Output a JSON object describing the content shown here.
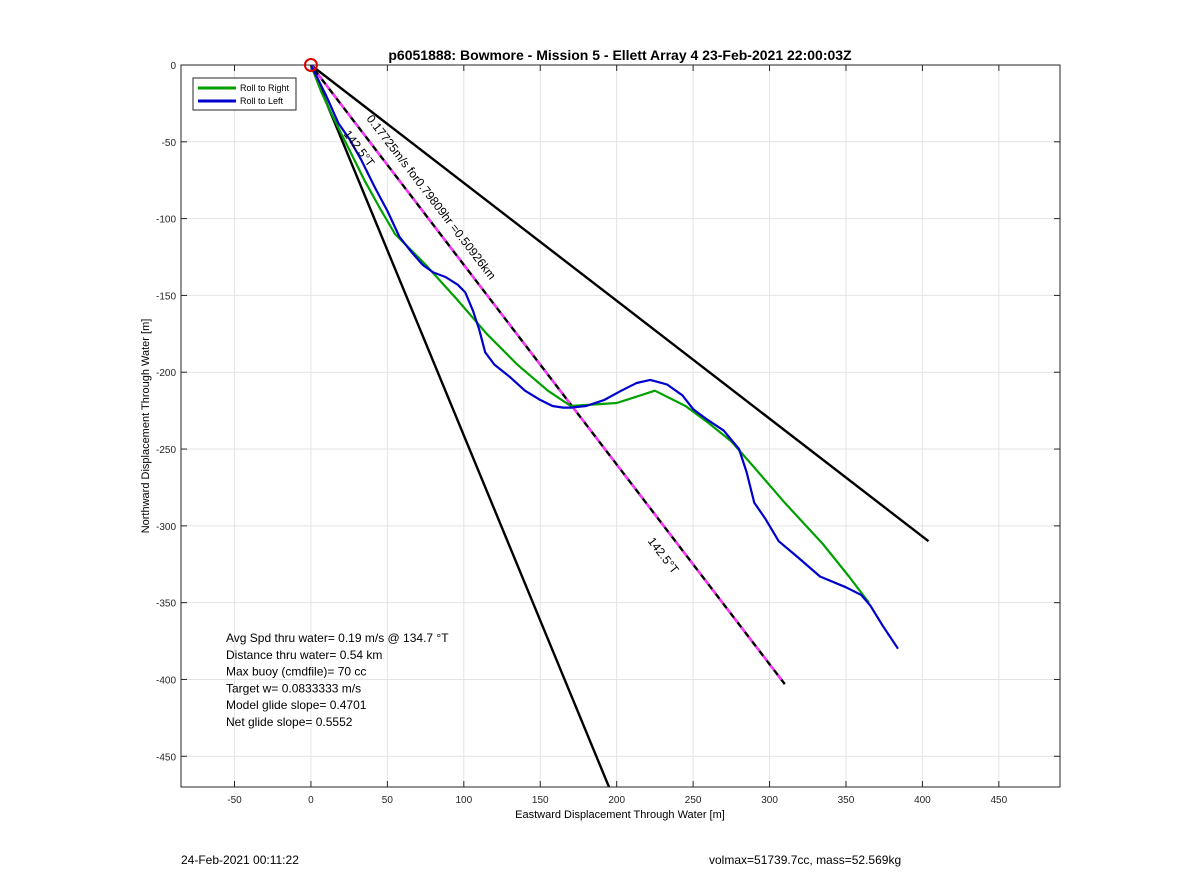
{
  "footer": {
    "timestamp": "24-Feb-2021 00:11:22",
    "volmax_mass": "volmax=51739.7cc, mass=52.569kg"
  },
  "chart_data": {
    "type": "line",
    "title": "p6051888: Bowmore - Mission 5 - Ellett Array 4 23-Feb-2021 22:00:03Z",
    "xlabel": "Eastward Displacement Through Water [m]",
    "ylabel": "Northward Displacement Through Water [m]",
    "xlim": [
      -85,
      490
    ],
    "ylim": [
      -470,
      0
    ],
    "xticks": [
      -50,
      0,
      50,
      100,
      150,
      200,
      250,
      300,
      350,
      400,
      450
    ],
    "yticks": [
      0,
      -50,
      -100,
      -150,
      -200,
      -250,
      -300,
      -350,
      -400,
      -450
    ],
    "grid": true,
    "legend_position": "top-left",
    "colors": {
      "roll_right": "#00a000",
      "roll_left": "#0000cc",
      "bounds": "#000000",
      "model_dash": "#ff33ff",
      "start_marker": "#dd0000",
      "grid": "#e4e4e4"
    },
    "series": [
      {
        "name": "Roll to Right",
        "color": "#00a000",
        "x": [
          0,
          7,
          15,
          25,
          35,
          45,
          55,
          65,
          75,
          95,
          115,
          135,
          155,
          170,
          200,
          225,
          245,
          260,
          275,
          290,
          310,
          335,
          352,
          365
        ],
        "y": [
          0,
          -18,
          -35,
          -55,
          -75,
          -93,
          -110,
          -120,
          -130,
          -152,
          -175,
          -195,
          -212,
          -222,
          -220,
          -212,
          -222,
          -233,
          -245,
          -262,
          -285,
          -312,
          -333,
          -350
        ]
      },
      {
        "name": "Roll to Left",
        "color": "#0000cc",
        "x": [
          0,
          5,
          10,
          18,
          25,
          33,
          42,
          50,
          58,
          66,
          73,
          80,
          88,
          96,
          101,
          106,
          110,
          114,
          120,
          130,
          140,
          150,
          158,
          165,
          170,
          180,
          192,
          203,
          213,
          222,
          233,
          243,
          250,
          258,
          270,
          280,
          285,
          290,
          297,
          306,
          318,
          333,
          350,
          360,
          366,
          374,
          384
        ],
        "y": [
          0,
          -10,
          -20,
          -38,
          -48,
          -62,
          -80,
          -95,
          -112,
          -122,
          -130,
          -135,
          -138,
          -143,
          -148,
          -160,
          -172,
          -187,
          -195,
          -203,
          -212,
          -218,
          -222,
          -223,
          -223,
          -222,
          -218,
          -212,
          -207,
          -205,
          -208,
          -215,
          -224,
          -230,
          -238,
          -250,
          -265,
          -285,
          -295,
          -310,
          -320,
          -333,
          -340,
          -345,
          -352,
          -365,
          -380
        ]
      },
      {
        "name": "",
        "color": "#000000",
        "x": [
          0,
          404
        ],
        "y": [
          0,
          -310
        ]
      },
      {
        "name": "",
        "color": "#000000",
        "x": [
          0,
          195
        ],
        "y": [
          0,
          -470
        ]
      },
      {
        "name": "",
        "color": "#000000",
        "x": [
          0,
          310
        ],
        "y": [
          0,
          -403
        ]
      }
    ],
    "start_point": {
      "x": 0,
      "y": 0
    },
    "annotations": [
      {
        "text": "0.17725m/s for0.79809hr =0.50926km",
        "x": 36,
        "y": -35,
        "angle": 52.5
      },
      {
        "text": "142.5°T",
        "x": 21,
        "y": -45,
        "angle": 52.5
      },
      {
        "text": "142.5°T",
        "x": 220,
        "y": -310,
        "angle": 52.5
      }
    ],
    "stats_lines": [
      "Avg Spd thru water=  0.19 m/s @ 134.7 °T",
      "Distance thru water=  0.54 km",
      "Max buoy (cmdfile)= 70 cc",
      "Target w= 0.0833333 m/s",
      "Model glide slope= 0.4701",
      "Net glide slope= 0.5552"
    ]
  }
}
